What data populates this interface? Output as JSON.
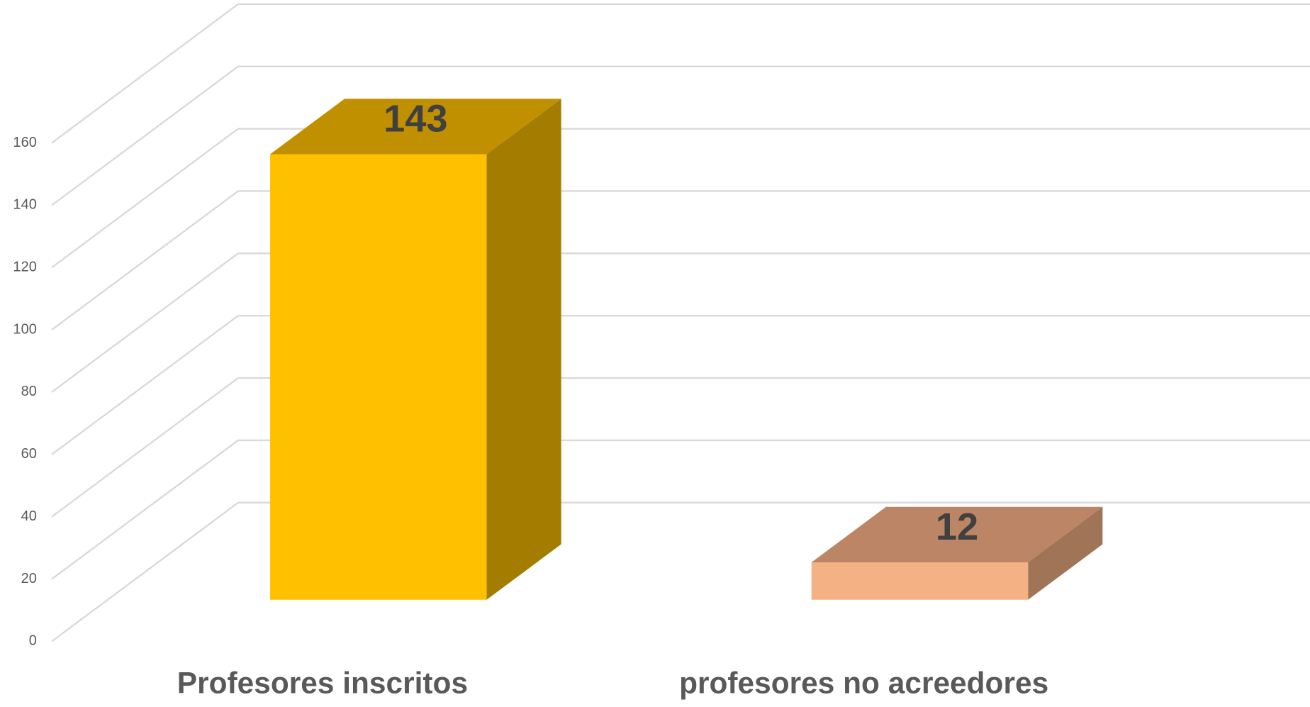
{
  "chart_data": {
    "type": "bar3d",
    "categories": [
      "Profesores inscritos",
      "profesores no acreedores"
    ],
    "values": [
      143,
      12
    ],
    "colors": [
      "#FFC000",
      "#F4B183"
    ],
    "top_colors": [
      "#C09000",
      "#BC8566"
    ],
    "side_colors": [
      "#A47D00",
      "#A07456"
    ],
    "ylim": [
      0,
      160
    ],
    "yticks": [
      0,
      20,
      40,
      60,
      80,
      100,
      120,
      140,
      160
    ],
    "grid": true
  }
}
